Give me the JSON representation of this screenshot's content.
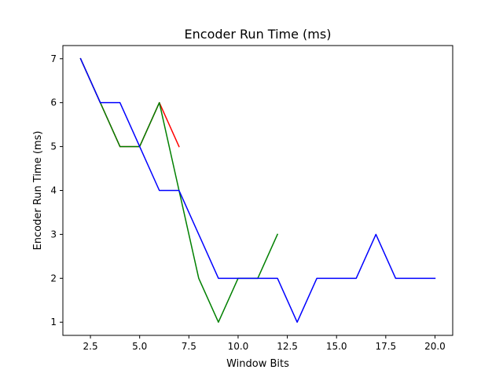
{
  "chart_data": {
    "type": "line",
    "title": "Encoder Run Time (ms)",
    "xlabel": "Window Bits",
    "ylabel": "Encoder Run Time (ms)",
    "xlim": [
      1.1,
      20.9
    ],
    "ylim": [
      0.7,
      7.3
    ],
    "xticks": [
      2.5,
      5.0,
      7.5,
      10.0,
      12.5,
      15.0,
      17.5,
      20.0
    ],
    "xtick_labels": [
      "2.5",
      "5.0",
      "7.5",
      "10.0",
      "12.5",
      "15.0",
      "17.5",
      "20.0"
    ],
    "yticks": [
      1,
      2,
      3,
      4,
      5,
      6,
      7
    ],
    "ytick_labels": [
      "1",
      "2",
      "3",
      "4",
      "5",
      "6",
      "7"
    ],
    "grid": false,
    "series": [
      {
        "color": "#ff0000",
        "x": [
          2,
          3,
          4,
          5,
          6,
          7
        ],
        "y": [
          7,
          6,
          5,
          5,
          6,
          5
        ]
      },
      {
        "color": "#008000",
        "x": [
          2,
          3,
          4,
          5,
          6,
          7,
          8,
          9,
          10,
          11,
          12
        ],
        "y": [
          7,
          6,
          5,
          5,
          6,
          4,
          2,
          1,
          2,
          2,
          3
        ]
      },
      {
        "color": "#0000ff",
        "x": [
          2,
          3,
          4,
          5,
          6,
          7,
          8,
          9,
          10,
          11,
          12,
          13,
          14,
          15,
          16,
          17,
          18,
          19,
          20
        ],
        "y": [
          7,
          6,
          6,
          5,
          4,
          4,
          3,
          2,
          2,
          2,
          2,
          1,
          2,
          2,
          2,
          3,
          2,
          2,
          2
        ]
      }
    ]
  }
}
